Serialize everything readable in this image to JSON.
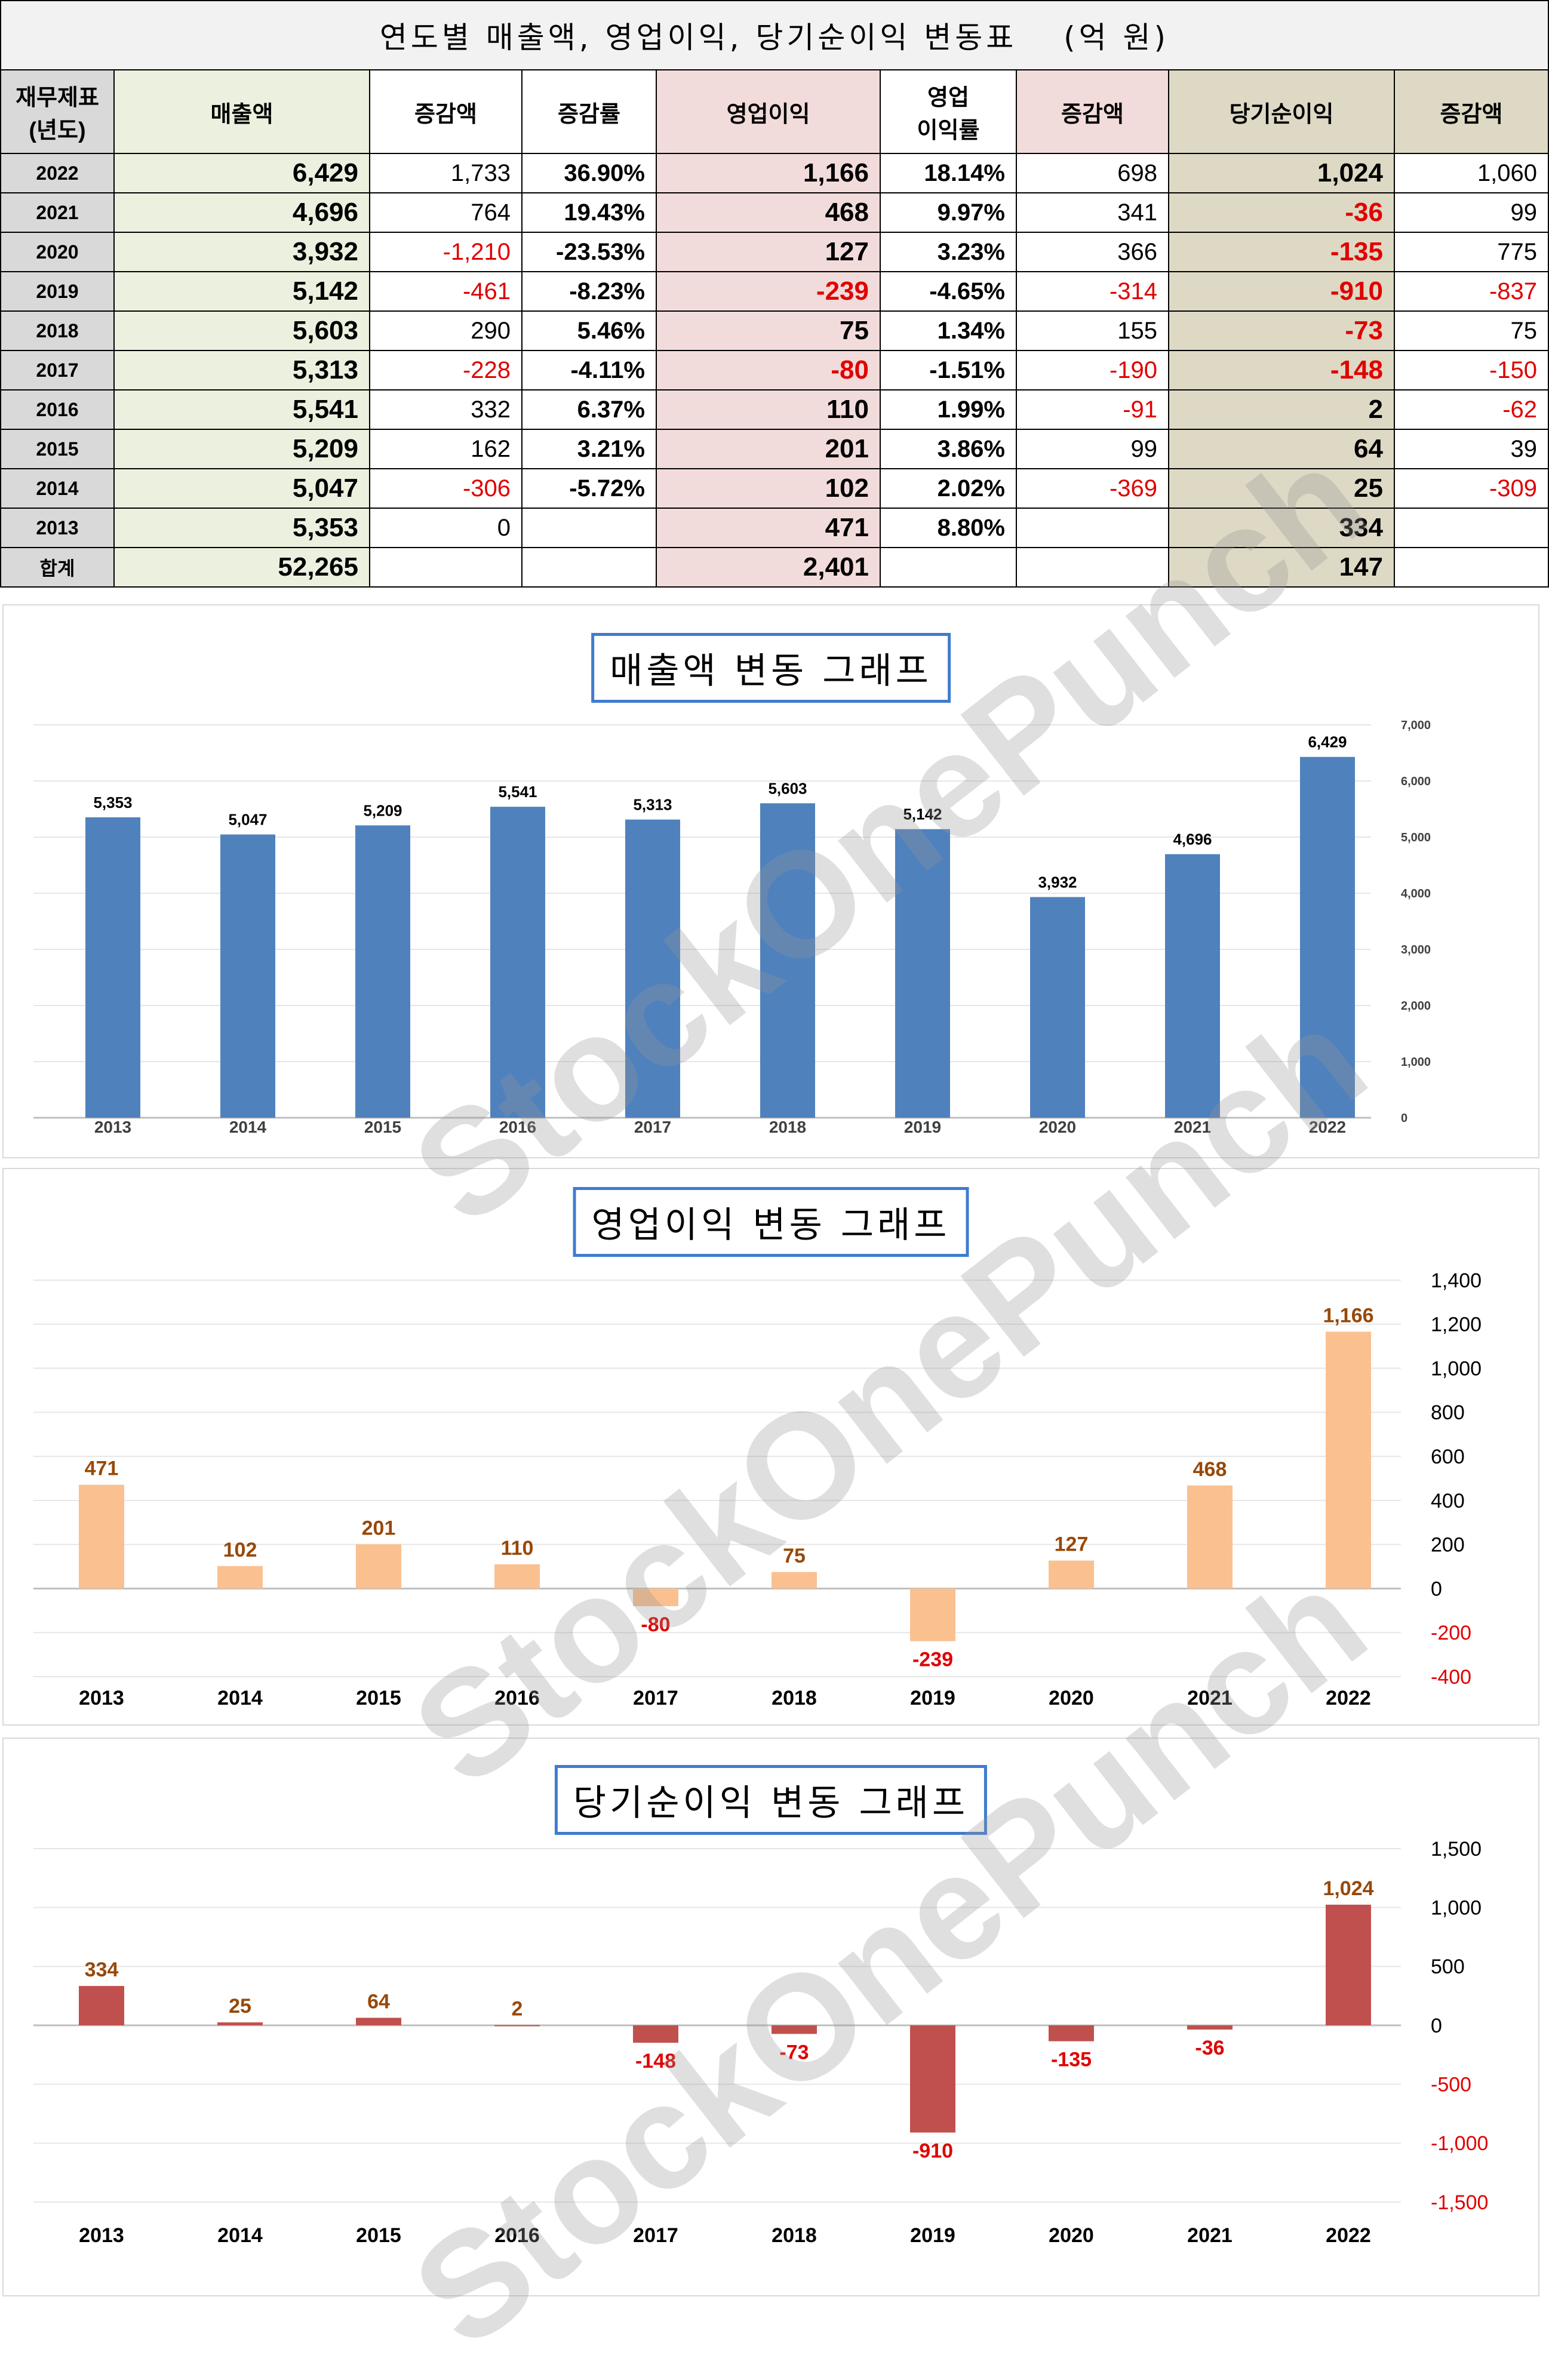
{
  "table": {
    "title": "연도별 매출액, 영업이익, 당기순이익 변동표　 (억 원)",
    "headers": [
      "재무제표\n(년도)",
      "매출액",
      "증감액",
      "증감률",
      "영업이익",
      "영업\n이익률",
      "증감액",
      "당기순이익",
      "증감액"
    ],
    "rows": [
      [
        "2022",
        "6,429",
        "1,733",
        "36.90%",
        "1,166",
        "18.14%",
        "698",
        "1,024",
        "1,060"
      ],
      [
        "2021",
        "4,696",
        "764",
        "19.43%",
        "468",
        "9.97%",
        "341",
        "-36",
        "99"
      ],
      [
        "2020",
        "3,932",
        "-1,210",
        "-23.53%",
        "127",
        "3.23%",
        "366",
        "-135",
        "775"
      ],
      [
        "2019",
        "5,142",
        "-461",
        "-8.23%",
        "-239",
        "-4.65%",
        "-314",
        "-910",
        "-837"
      ],
      [
        "2018",
        "5,603",
        "290",
        "5.46%",
        "75",
        "1.34%",
        "155",
        "-73",
        "75"
      ],
      [
        "2017",
        "5,313",
        "-228",
        "-4.11%",
        "-80",
        "-1.51%",
        "-190",
        "-148",
        "-150"
      ],
      [
        "2016",
        "5,541",
        "332",
        "6.37%",
        "110",
        "1.99%",
        "-91",
        "2",
        "-62"
      ],
      [
        "2015",
        "5,209",
        "162",
        "3.21%",
        "201",
        "3.86%",
        "99",
        "64",
        "39"
      ],
      [
        "2014",
        "5,047",
        "-306",
        "-5.72%",
        "102",
        "2.02%",
        "-369",
        "25",
        "-309"
      ],
      [
        "2013",
        "5,353",
        "0",
        "",
        "471",
        "8.80%",
        "",
        "334",
        ""
      ]
    ],
    "total": [
      "합계",
      "52,265",
      "",
      "",
      "2,401",
      "",
      "",
      "147",
      ""
    ]
  },
  "watermark": "StockOnePunch",
  "colors": {
    "revenue": "#4f81bd",
    "operating": "#fac090",
    "net": "#c0504d",
    "negative_label": "#e00000",
    "positive_label_op": "#984807"
  },
  "chart_data": [
    {
      "type": "bar",
      "title": "매출액 변동 그래프",
      "categories": [
        "2013",
        "2014",
        "2015",
        "2016",
        "2017",
        "2018",
        "2019",
        "2020",
        "2021",
        "2022"
      ],
      "values": [
        5353,
        5047,
        5209,
        5541,
        5313,
        5603,
        5142,
        3932,
        4696,
        6429
      ],
      "labels": [
        "5,353",
        "5,047",
        "5,209",
        "5,541",
        "5,313",
        "5,603",
        "5,142",
        "3,932",
        "4,696",
        "6,429"
      ],
      "yticks": [
        "0",
        "1,000",
        "2,000",
        "3,000",
        "4,000",
        "5,000",
        "6,000",
        "7,000"
      ],
      "ylim": [
        0,
        7000
      ],
      "grid": true,
      "axis_side": "right"
    },
    {
      "type": "bar",
      "title": "영업이익 변동 그래프",
      "categories": [
        "2013",
        "2014",
        "2015",
        "2016",
        "2017",
        "2018",
        "2019",
        "2020",
        "2021",
        "2022"
      ],
      "values": [
        471,
        102,
        201,
        110,
        -80,
        75,
        -239,
        127,
        468,
        1166
      ],
      "labels": [
        "471",
        "102",
        "201",
        "110",
        "-80",
        "75",
        "-239",
        "127",
        "468",
        "1,166"
      ],
      "yticks": [
        "-400",
        "-200",
        "0",
        "200",
        "400",
        "600",
        "800",
        "1,000",
        "1,200",
        "1,400"
      ],
      "ylim": [
        -400,
        1400
      ],
      "grid": true,
      "axis_side": "right"
    },
    {
      "type": "bar",
      "title": "당기순이익 변동 그래프",
      "categories": [
        "2013",
        "2014",
        "2015",
        "2016",
        "2017",
        "2018",
        "2019",
        "2020",
        "2021",
        "2022"
      ],
      "values": [
        334,
        25,
        64,
        2,
        -148,
        -73,
        -910,
        -135,
        -36,
        1024
      ],
      "labels": [
        "334",
        "25",
        "64",
        "2",
        "-148",
        "-73",
        "-910",
        "-135",
        "-36",
        "1,024"
      ],
      "yticks": [
        "-1,500",
        "-1,000",
        "-500",
        "0",
        "500",
        "1,000",
        "1,500"
      ],
      "ylim": [
        -1500,
        1500
      ],
      "grid": true,
      "axis_side": "right"
    }
  ]
}
